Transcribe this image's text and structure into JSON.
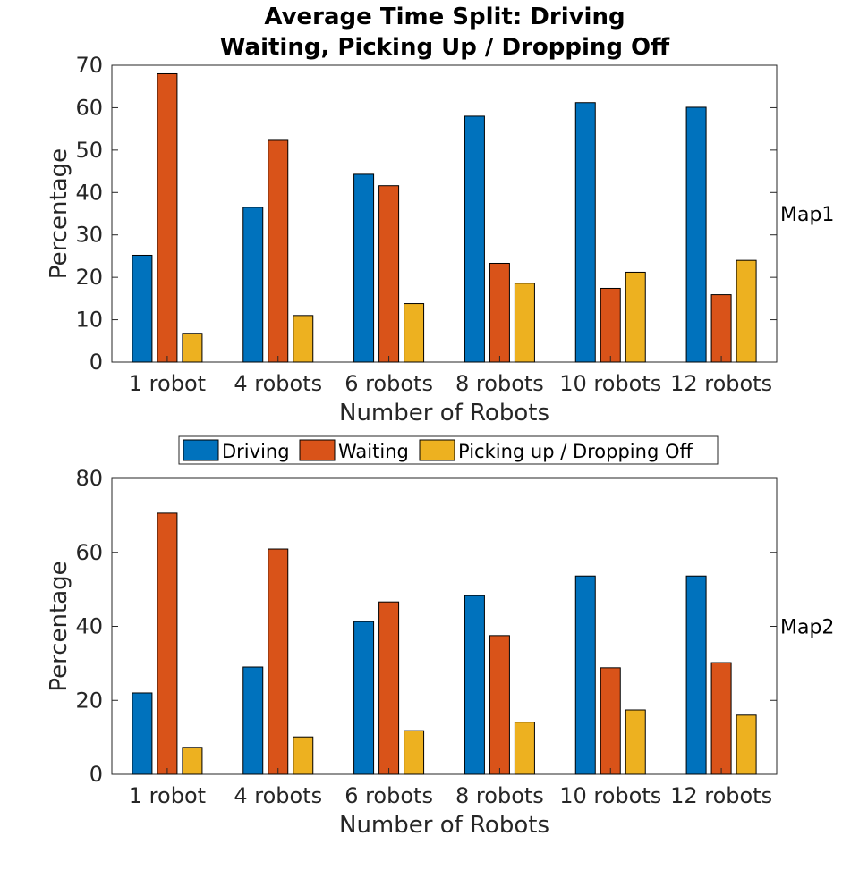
{
  "title_line1": "Average Time Split: Driving",
  "title_line2": "Waiting, Picking Up / Dropping Off",
  "legend": [
    "Driving",
    "Waiting",
    "Picking up / Dropping Off"
  ],
  "colors": [
    "#0072BD",
    "#D95319",
    "#EDB120"
  ],
  "chart_data": [
    {
      "type": "bar",
      "panel_label": "Map1",
      "categories": [
        "1 robot",
        "4 robots",
        "6 robots",
        "8 robots",
        "10 robots",
        "12 robots"
      ],
      "series": [
        {
          "name": "Driving",
          "values": [
            25.2,
            36.5,
            44.3,
            58.0,
            61.2,
            60.1
          ]
        },
        {
          "name": "Waiting",
          "values": [
            68.0,
            52.3,
            41.6,
            23.3,
            17.4,
            15.9
          ]
        },
        {
          "name": "Picking up / Dropping Off",
          "values": [
            6.8,
            11.0,
            13.8,
            18.6,
            21.2,
            24.0
          ]
        }
      ],
      "xlabel": "Number of Robots",
      "ylabel": "Percentage",
      "ylim": [
        0,
        70
      ],
      "yticks": [
        0,
        10,
        20,
        30,
        40,
        50,
        60,
        70
      ],
      "grid": false
    },
    {
      "type": "bar",
      "panel_label": "Map2",
      "categories": [
        "1 robot",
        "4 robots",
        "6 robots",
        "8 robots",
        "10 robots",
        "12 robots"
      ],
      "series": [
        {
          "name": "Driving",
          "values": [
            22.0,
            29.0,
            41.3,
            48.3,
            53.6,
            53.6
          ]
        },
        {
          "name": "Waiting",
          "values": [
            70.6,
            60.9,
            46.6,
            37.5,
            28.8,
            30.2
          ]
        },
        {
          "name": "Picking up / Dropping Off",
          "values": [
            7.3,
            10.1,
            11.8,
            14.1,
            17.4,
            16.0
          ]
        }
      ],
      "xlabel": "Number of Robots",
      "ylabel": "Percentage",
      "ylim": [
        0,
        80
      ],
      "yticks": [
        0,
        20,
        40,
        60,
        80
      ],
      "grid": false
    }
  ]
}
